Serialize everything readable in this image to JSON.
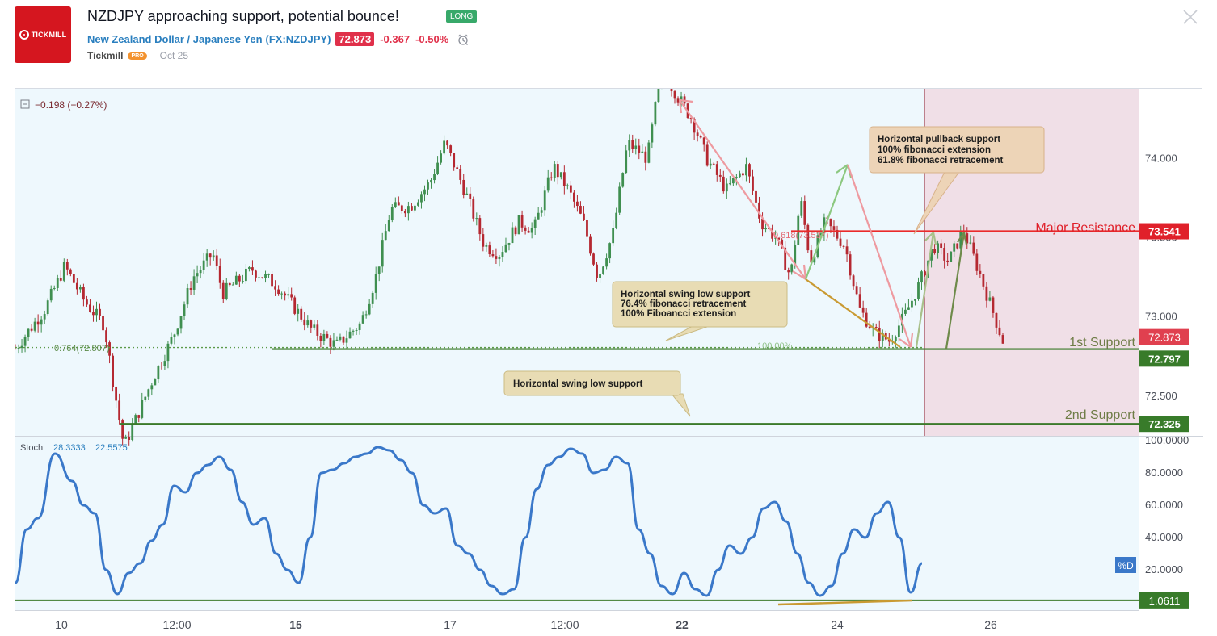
{
  "header": {
    "logo_text": "TICKMILL",
    "title": "NZDJPY approaching support, potential bounce!",
    "badge": "LONG",
    "pair_name": "New Zealand Dollar / Japanese Yen",
    "symbol": "(FX:NZDJPY)",
    "price": "72.873",
    "change": "-0.367",
    "change_pct": "-0.50%",
    "author": "Tickmill",
    "author_badge": "PRO",
    "date": "Oct 25"
  },
  "icons": {
    "alarm": "alarm-clock-icon",
    "close": "close-icon",
    "collapse": "collapse-square-icon",
    "logo": "tickmill-logo-icon"
  },
  "colors": {
    "chart_bg": "#eef8fd",
    "zone_bg": "#f0dfe7",
    "up_candle": "#3f8f50",
    "down_candle": "#b52831",
    "stoch_line": "#3a78c9",
    "support_line": "#3b7a2a",
    "resistance_line": "#ea2b2b",
    "resistance_label": "#e0202a",
    "support_label": "#6e7c46",
    "price_tag": "#e0404f",
    "support_tag": "#387b2a"
  },
  "chart_data": [
    {
      "type": "candlestick",
      "legend_value": "−0.198 (−0.27%)",
      "y_ticks": [
        74.0,
        73.5,
        73.0,
        72.5
      ],
      "y_tick_labels": [
        "74.000",
        "73.500",
        "73.000",
        "72.500"
      ],
      "ylim": [
        72.27,
        74.42
      ],
      "x_ticks": [
        "10",
        "12:00",
        "15",
        "17",
        "12:00",
        "22",
        "24",
        "26"
      ],
      "x_ticks_bold": [
        "15",
        "22"
      ],
      "x_range": [
        0,
        1
      ],
      "close_path": {
        "x": [
          0.0,
          0.03,
          0.05,
          0.07,
          0.09,
          0.1,
          0.11,
          0.125,
          0.14,
          0.16,
          0.18,
          0.2,
          0.21,
          0.24,
          0.265,
          0.3,
          0.325,
          0.35,
          0.365,
          0.38,
          0.4,
          0.42,
          0.435,
          0.455,
          0.475,
          0.49,
          0.51,
          0.525,
          0.545,
          0.56,
          0.575,
          0.59,
          0.605,
          0.62,
          0.64,
          0.655,
          0.665,
          0.685,
          0.7,
          0.72,
          0.74,
          0.755,
          0.77,
          0.785,
          0.795,
          0.805,
          0.82,
          0.84,
          0.855,
          0.87,
          0.885,
          0.9,
          0.915,
          0.93,
          0.945,
          0.96,
          0.975,
          1.0
        ],
        "y": [
          72.8,
          73.05,
          73.32,
          73.1,
          72.95,
          72.55,
          72.18,
          72.4,
          72.62,
          72.88,
          73.25,
          73.4,
          73.15,
          73.3,
          73.2,
          72.92,
          72.82,
          72.96,
          73.25,
          73.68,
          73.7,
          73.85,
          74.1,
          73.8,
          73.45,
          73.4,
          73.6,
          73.55,
          73.95,
          73.8,
          73.6,
          73.25,
          73.52,
          74.1,
          74.0,
          74.6,
          74.45,
          74.25,
          74.0,
          73.8,
          73.95,
          73.6,
          73.5,
          73.25,
          73.75,
          73.35,
          73.6,
          73.45,
          73.05,
          72.9,
          72.85,
          73.0,
          73.2,
          73.45,
          73.35,
          73.55,
          73.3,
          72.85
        ],
        "note": "x is a 0-1 fraction of the price-series span"
      },
      "horizontal_levels": [
        {
          "name": "Major Resistance",
          "value": 73.541,
          "tag": "73.541"
        },
        {
          "name": "1st Support",
          "value": 72.797,
          "tag": "72.797"
        },
        {
          "name": "2nd Support",
          "value": 72.325,
          "tag": "72.325"
        }
      ],
      "current_price": {
        "value": 72.873,
        "tag": "72.873"
      },
      "fib_labels": [
        "0.764(72.807)",
        "100.00%",
        "0.618(73.537)"
      ],
      "annotations": [
        {
          "lines": [
            "Horizontal pullback support",
            "100% fibonacci extension",
            "61.8% fibonacci retracement"
          ]
        },
        {
          "lines": [
            "Horizontal swing low support",
            "76.4% fibonacci retracement",
            "100% Fiboancci extension"
          ]
        },
        {
          "lines": [
            "Horizontal swing low support"
          ]
        }
      ]
    },
    {
      "type": "line",
      "name": "Stoch",
      "k_value": "28.3333",
      "d_value": "22.5575",
      "d_label": "%D",
      "y_ticks": [
        100,
        80,
        60,
        40,
        20
      ],
      "y_tick_labels": [
        "100.0000",
        "80.0000",
        "60.0000",
        "40.0000",
        "20.0000"
      ],
      "ylim": [
        -2,
        100
      ],
      "level": {
        "value": 1.0611,
        "tag": "1.0611"
      },
      "series": [
        {
          "x": [
            0.0,
            0.01,
            0.02,
            0.035,
            0.05,
            0.06,
            0.07,
            0.08,
            0.09,
            0.1,
            0.11,
            0.12,
            0.13,
            0.14,
            0.15,
            0.16,
            0.17,
            0.18,
            0.19,
            0.2,
            0.21,
            0.22,
            0.23,
            0.24,
            0.25,
            0.26,
            0.27,
            0.28,
            0.29,
            0.3,
            0.31,
            0.32,
            0.33,
            0.34,
            0.35,
            0.36,
            0.37,
            0.38,
            0.39,
            0.4,
            0.41,
            0.42,
            0.43,
            0.44,
            0.45,
            0.46,
            0.47,
            0.48,
            0.49,
            0.5,
            0.51,
            0.52,
            0.53,
            0.54,
            0.55,
            0.56,
            0.57,
            0.58,
            0.59,
            0.6,
            0.61,
            0.62,
            0.63,
            0.64,
            0.65,
            0.66,
            0.67,
            0.68,
            0.69,
            0.7,
            0.71,
            0.72,
            0.73,
            0.74,
            0.75,
            0.76,
            0.77,
            0.78,
            0.79,
            0.8
          ],
          "values": [
            12,
            45,
            52,
            92,
            75,
            60,
            55,
            20,
            5,
            18,
            24,
            38,
            48,
            72,
            68,
            80,
            85,
            90,
            82,
            62,
            48,
            52,
            30,
            20,
            12,
            40,
            80,
            82,
            86,
            90,
            92,
            96,
            94,
            88,
            80,
            60,
            55,
            58,
            35,
            30,
            20,
            10,
            5,
            8,
            40,
            70,
            85,
            90,
            95,
            92,
            80,
            82,
            90,
            86,
            45,
            30,
            10,
            5,
            18,
            8,
            4,
            20,
            35,
            30,
            40,
            58,
            62,
            50,
            30,
            12,
            4,
            10,
            30,
            45,
            40,
            55,
            62,
            40,
            6,
            24
          ]
        }
      ]
    }
  ]
}
